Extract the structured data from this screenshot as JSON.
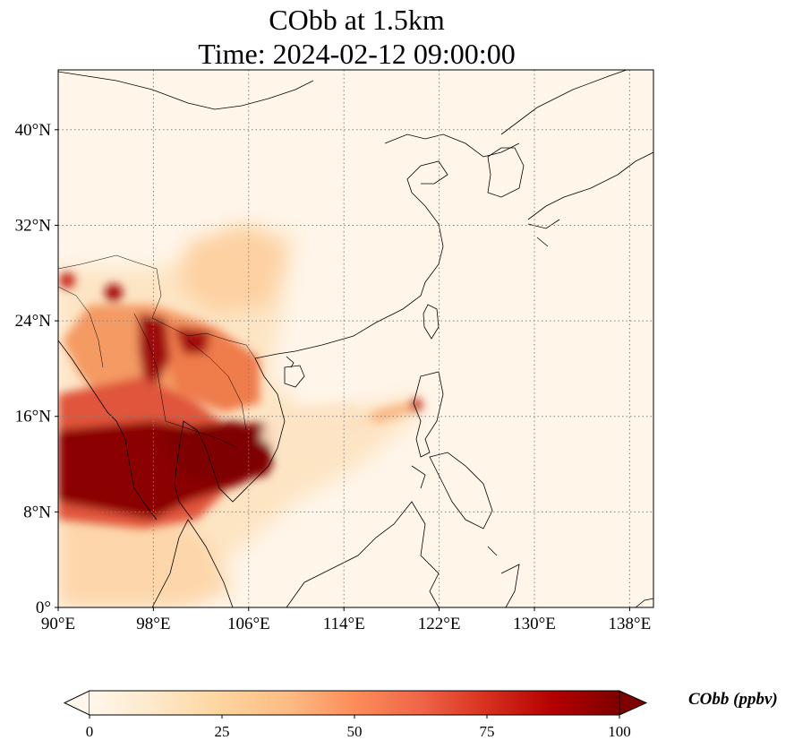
{
  "title": {
    "line1": "CObb at 1.5km",
    "line2": "Time: 2024-02-12 09:00:00"
  },
  "map": {
    "projection": "PlateCarree",
    "lon_range": [
      90,
      140
    ],
    "lat_range": [
      0,
      45
    ],
    "gridlines": "dotted",
    "x_ticks": [
      {
        "value": 90,
        "label": "90°E"
      },
      {
        "value": 98,
        "label": "98°E"
      },
      {
        "value": 106,
        "label": "106°E"
      },
      {
        "value": 114,
        "label": "114°E"
      },
      {
        "value": 122,
        "label": "122°E"
      },
      {
        "value": 130,
        "label": "130°E"
      },
      {
        "value": 138,
        "label": "138°E"
      }
    ],
    "y_ticks": [
      {
        "value": 0,
        "label": "0°"
      },
      {
        "value": 8,
        "label": "8°N"
      },
      {
        "value": 16,
        "label": "16°N"
      },
      {
        "value": 24,
        "label": "24°N"
      },
      {
        "value": 32,
        "label": "32°N"
      },
      {
        "value": 40,
        "label": "40°N"
      }
    ]
  },
  "colorbar": {
    "label": "CObb (ppbv)",
    "colormap": "OrRd",
    "min": 0,
    "max": 100,
    "extend": "both",
    "ticks": [
      {
        "value": 0,
        "label": "0"
      },
      {
        "value": 25,
        "label": "25"
      },
      {
        "value": 50,
        "label": "50"
      },
      {
        "value": 75,
        "label": "75"
      },
      {
        "value": 100,
        "label": "100"
      }
    ],
    "colors": {
      "low": "#fff7ec",
      "q1": "#fdd49e",
      "mid": "#fc8d59",
      "q3": "#d7301f",
      "high": "#7f0000"
    }
  }
}
